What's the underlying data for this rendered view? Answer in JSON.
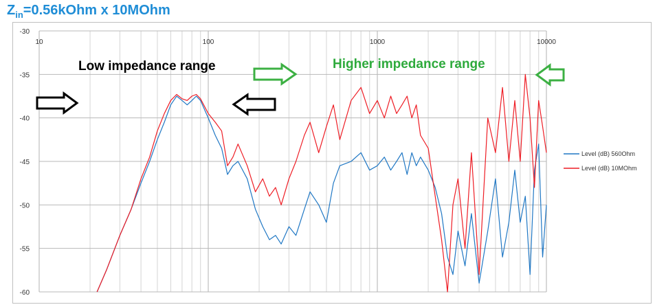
{
  "title": {
    "main": "Z",
    "sub": "in",
    "rest": "=0.56kOhm x 10MOhm"
  },
  "annotations": {
    "low": "Low impedance range",
    "high": "Higher impedance range"
  },
  "colors": {
    "title": "#1f8dd6",
    "series_560": "#1f77c4",
    "series_10M": "#ee1c24",
    "low_text": "#000000",
    "high_text": "#2eaa3c",
    "low_arrow": "#000000",
    "high_arrow": "#3cb043"
  },
  "chart_data": {
    "type": "line",
    "xscale": "log",
    "xlim": [
      10,
      10000
    ],
    "ylim": [
      -60,
      -30
    ],
    "xticks": [
      "10",
      "100",
      "1000",
      "10000"
    ],
    "yticks": [
      "-30",
      "-35",
      "-40",
      "-45",
      "-50",
      "-55",
      "-60"
    ],
    "grid": true,
    "legend_position": "right",
    "series": [
      {
        "name": "Level (dB) 560Ohm",
        "color": "#1f77c4",
        "x": [
          22,
          25,
          30,
          35,
          40,
          45,
          50,
          55,
          60,
          65,
          70,
          75,
          80,
          85,
          90,
          100,
          110,
          120,
          130,
          140,
          150,
          170,
          190,
          210,
          230,
          250,
          270,
          300,
          330,
          370,
          400,
          450,
          500,
          550,
          600,
          700,
          800,
          900,
          1000,
          1100,
          1200,
          1300,
          1400,
          1500,
          1600,
          1700,
          1800,
          2000,
          2200,
          2400,
          2600,
          2800,
          3000,
          3300,
          3600,
          4000,
          4500,
          5000,
          5500,
          6000,
          6500,
          7000,
          7500,
          8000,
          8500,
          9000,
          9500,
          10000
        ],
        "y": [
          -60,
          -57.5,
          -53.5,
          -50.5,
          -47.5,
          -45,
          -42.5,
          -40.5,
          -38.5,
          -37.5,
          -38,
          -38.5,
          -38,
          -37.5,
          -38,
          -40,
          -42,
          -43.5,
          -46.5,
          -45.5,
          -45,
          -47,
          -50.5,
          -52.5,
          -54,
          -53.5,
          -54.5,
          -52.5,
          -53.5,
          -50.5,
          -48.5,
          -50,
          -52,
          -47.5,
          -45.5,
          -45,
          -44,
          -46,
          -45.5,
          -44.5,
          -46,
          -45,
          -44,
          -46.5,
          -44,
          -45.5,
          -44.5,
          -46,
          -48,
          -51,
          -56,
          -58,
          -53,
          -57,
          -51,
          -59,
          -53,
          -47,
          -56,
          -52,
          -46,
          -52,
          -49,
          -58,
          -46,
          -43,
          -56,
          -50
        ]
      },
      {
        "name": "Level (dB) 10MOhm",
        "color": "#ee1c24",
        "x": [
          22,
          25,
          30,
          35,
          40,
          45,
          50,
          55,
          60,
          65,
          70,
          75,
          80,
          85,
          90,
          100,
          110,
          120,
          130,
          140,
          150,
          170,
          190,
          210,
          230,
          250,
          270,
          300,
          330,
          370,
          400,
          450,
          500,
          550,
          600,
          700,
          800,
          900,
          1000,
          1100,
          1200,
          1300,
          1400,
          1500,
          1600,
          1700,
          1800,
          2000,
          2200,
          2400,
          2600,
          2800,
          3000,
          3300,
          3600,
          4000,
          4500,
          5000,
          5500,
          6000,
          6500,
          7000,
          7500,
          8000,
          8500,
          9000,
          9500,
          10000
        ],
        "y": [
          -60,
          -57.5,
          -53.5,
          -50.5,
          -47,
          -44.5,
          -41.5,
          -39.5,
          -38,
          -37.3,
          -37.8,
          -38,
          -37.5,
          -37.3,
          -37.8,
          -39.5,
          -40.5,
          -41.5,
          -45.5,
          -44.5,
          -43,
          -45.5,
          -48.5,
          -47,
          -49,
          -48,
          -50,
          -47,
          -45,
          -42,
          -40.5,
          -44,
          -41,
          -38.5,
          -42.5,
          -38,
          -36.5,
          -39.5,
          -38,
          -40,
          -37.5,
          -39.5,
          -38.5,
          -37.5,
          -40,
          -38.5,
          -42,
          -43.5,
          -49,
          -54,
          -60,
          -50,
          -47,
          -55,
          -44,
          -58,
          -40,
          -44,
          -36.5,
          -45,
          -38,
          -45,
          -35,
          -40,
          -48,
          -38,
          -41,
          -44
        ]
      }
    ]
  }
}
